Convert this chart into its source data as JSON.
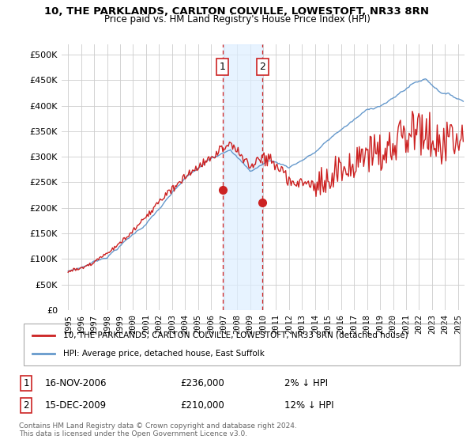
{
  "title": "10, THE PARKLANDS, CARLTON COLVILLE, LOWESTOFT, NR33 8RN",
  "subtitle": "Price paid vs. HM Land Registry's House Price Index (HPI)",
  "legend_line1": "10, THE PARKLANDS, CARLTON COLVILLE, LOWESTOFT, NR33 8RN (detached house)",
  "legend_line2": "HPI: Average price, detached house, East Suffolk",
  "annotation1_label": "1",
  "annotation1_date": "16-NOV-2006",
  "annotation1_price": "£236,000",
  "annotation1_hpi": "2% ↓ HPI",
  "annotation2_label": "2",
  "annotation2_date": "15-DEC-2009",
  "annotation2_price": "£210,000",
  "annotation2_hpi": "12% ↓ HPI",
  "footnote": "Contains HM Land Registry data © Crown copyright and database right 2024.\nThis data is licensed under the Open Government Licence v3.0.",
  "sale1_x": 2006.88,
  "sale1_y": 236000,
  "sale2_x": 2009.96,
  "sale2_y": 210000,
  "vline1_x": 2006.88,
  "vline2_x": 2009.96,
  "hpi_color": "#6699cc",
  "price_color": "#cc2222",
  "vline_color": "#cc2222",
  "shade_color": "#ddeeff",
  "background_color": "#ffffff",
  "grid_color": "#cccccc",
  "ylim": [
    0,
    520000
  ],
  "xlim": [
    1994.5,
    2025.5
  ],
  "yticks": [
    0,
    50000,
    100000,
    150000,
    200000,
    250000,
    300000,
    350000,
    400000,
    450000,
    500000
  ],
  "xticks": [
    1995,
    1996,
    1997,
    1998,
    1999,
    2000,
    2001,
    2002,
    2003,
    2004,
    2005,
    2006,
    2007,
    2008,
    2009,
    2010,
    2011,
    2012,
    2013,
    2014,
    2015,
    2016,
    2017,
    2018,
    2019,
    2020,
    2021,
    2022,
    2023,
    2024,
    2025
  ]
}
